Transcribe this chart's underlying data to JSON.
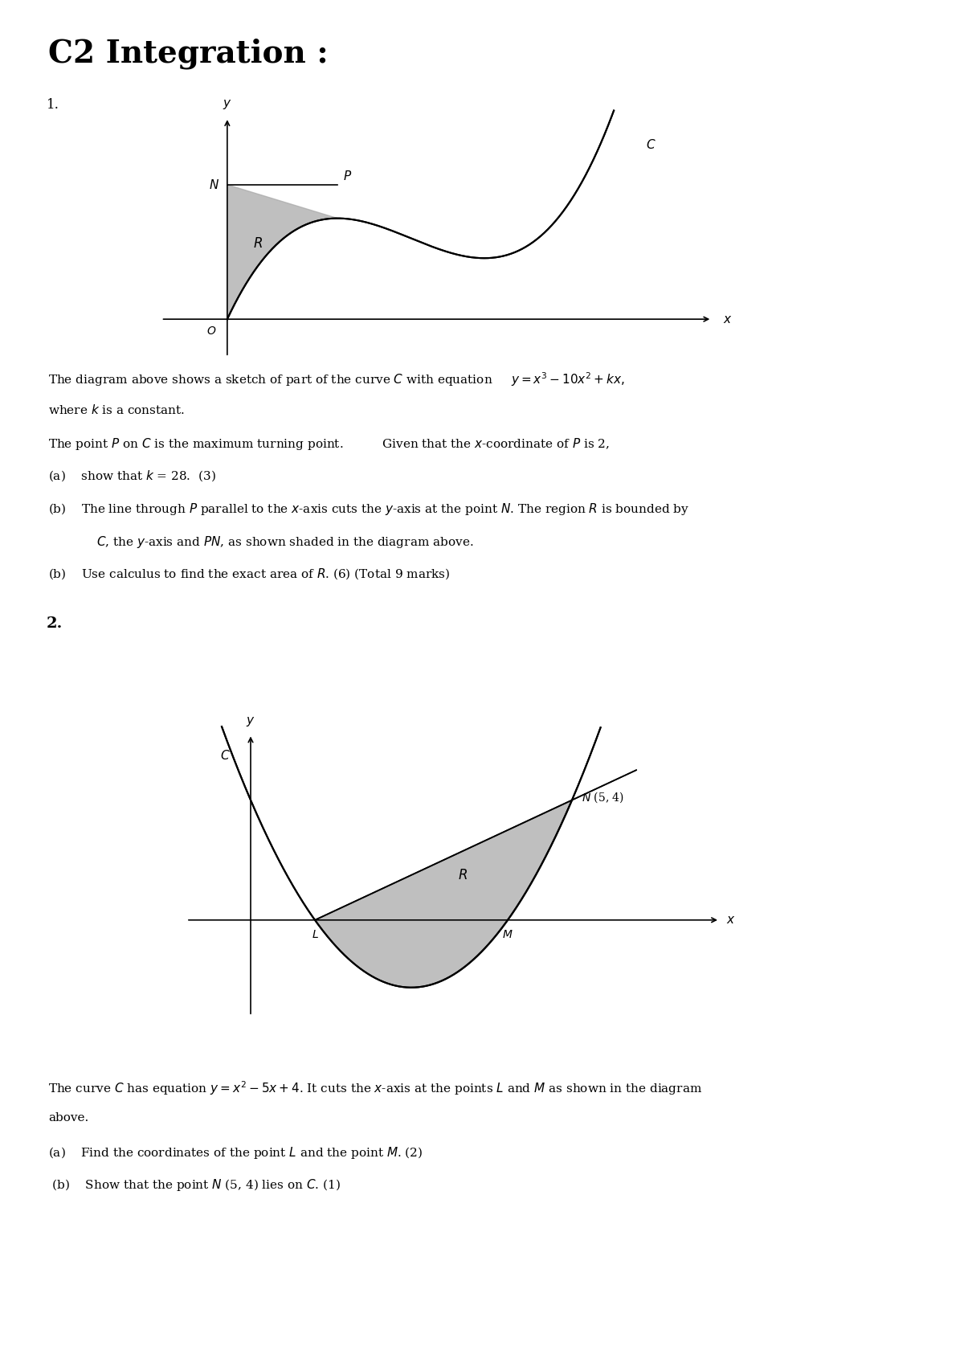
{
  "title": "C2 Integration :",
  "title_fontsize": 28,
  "title_fontweight": "bold",
  "bg_color": "#ffffff",
  "text_color": "#000000",
  "shade_color": "#aaaaaa",
  "q1_label": "1.",
  "q2_label": "2.",
  "fig_width": 12.0,
  "fig_height": 16.96,
  "dpi": 100
}
